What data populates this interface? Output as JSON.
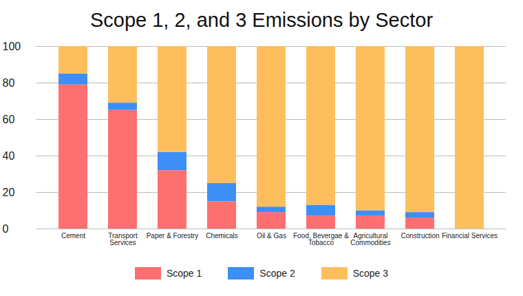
{
  "chart_data": {
    "type": "bar",
    "stacked": true,
    "title": "Scope 1, 2, and 3 Emissions by Sector",
    "categories": [
      "Cement",
      "Transport Services",
      "Paper & Forestry",
      "Chemicals",
      "Oil & Gas",
      "Food, Bevergae & Tobacco",
      "Agricultural Commodities",
      "Construction",
      "Financial Services"
    ],
    "series": [
      {
        "name": "Scope 1",
        "color": "#ff6f6f",
        "values": [
          79,
          65,
          32,
          15,
          9,
          7,
          7,
          6,
          0
        ]
      },
      {
        "name": "Scope 2",
        "color": "#3d8ef5",
        "values": [
          6,
          4,
          10,
          10,
          3,
          6,
          3,
          3,
          0
        ]
      },
      {
        "name": "Scope 3",
        "color": "#ffbe5c",
        "values": [
          15,
          31,
          58,
          75,
          88,
          87,
          90,
          91,
          100
        ]
      }
    ],
    "ylim": [
      0,
      100
    ],
    "yticks": [
      0,
      20,
      40,
      60,
      80,
      100
    ],
    "grid": true,
    "legend": "bottom"
  }
}
